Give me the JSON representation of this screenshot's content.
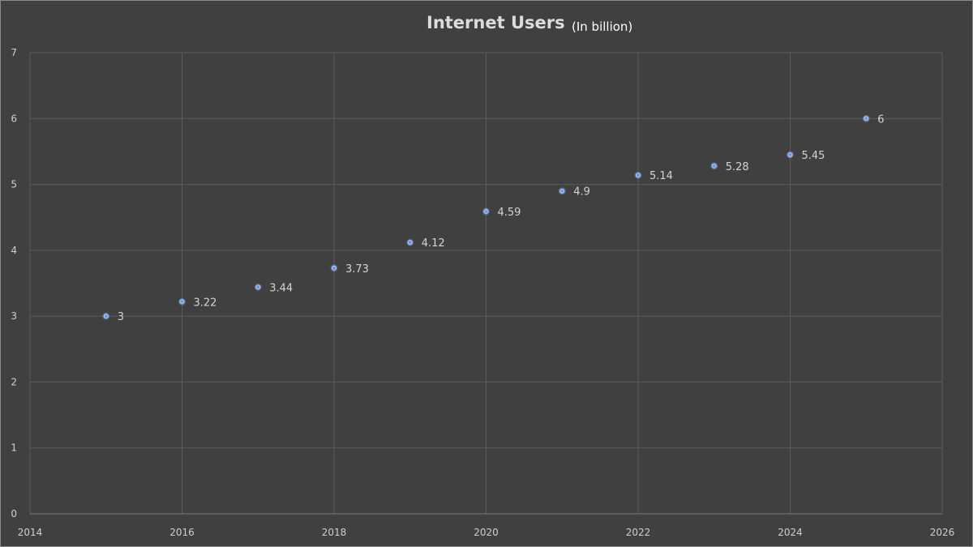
{
  "chart_data": {
    "type": "scatter",
    "title": "Internet Users",
    "subtitle": "(In billion)",
    "xlabel": "",
    "ylabel": "",
    "xlim": [
      2014,
      2026
    ],
    "ylim": [
      0,
      7
    ],
    "x_ticks": [
      "2014",
      "2016",
      "2018",
      "2020",
      "2022",
      "2024",
      "2026"
    ],
    "y_ticks": [
      "0",
      "1",
      "2",
      "3",
      "4",
      "5",
      "6",
      "7"
    ],
    "grid": true,
    "legend": "none",
    "marker_color": "#6a96e4",
    "series": [
      {
        "x": [
          2015,
          2016,
          2017,
          2018,
          2019,
          2020,
          2021,
          2022,
          2023,
          2024,
          2025
        ],
        "y": [
          3,
          3.22,
          3.44,
          3.73,
          4.12,
          4.59,
          4.9,
          5.14,
          5.28,
          5.45,
          6
        ],
        "labels": [
          "3",
          "3.22",
          "3.44",
          "3.73",
          "4.12",
          "4.59",
          "4.9",
          "5.14",
          "5.28",
          "5.45",
          "6"
        ]
      }
    ]
  }
}
